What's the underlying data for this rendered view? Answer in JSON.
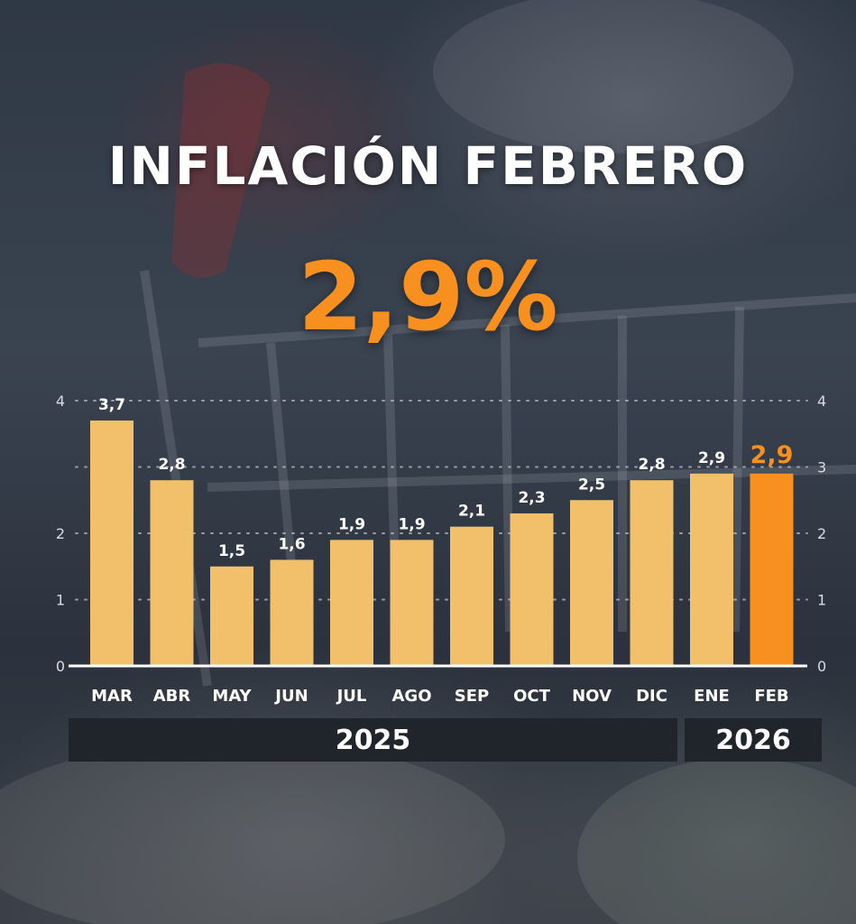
{
  "headline": "INFLACIÓN FEBRERO",
  "big_value": "2,9%",
  "colors": {
    "bar": "#f2bf6b",
    "highlight": "#f7901e",
    "axis": "#ffffff",
    "grid": "#b9bec6",
    "year_band": "#20242b"
  },
  "chart_data": {
    "type": "bar",
    "categories": [
      "MAR",
      "ABR",
      "MAY",
      "JUN",
      "JUL",
      "AGO",
      "SEP",
      "OCT",
      "NOV",
      "DIC",
      "ENE",
      "FEB"
    ],
    "values": [
      3.7,
      2.8,
      1.5,
      1.6,
      1.9,
      1.9,
      2.1,
      2.3,
      2.5,
      2.8,
      2.9,
      2.9
    ],
    "value_labels": [
      "3,7",
      "2,8",
      "1,5",
      "1,6",
      "1,9",
      "1,9",
      "2,1",
      "2,3",
      "2,5",
      "2,8",
      "2,9",
      "2,9"
    ],
    "highlight_index": 11,
    "ylim": [
      0,
      4
    ],
    "left_ticks": [
      "0",
      "1",
      "2",
      "4"
    ],
    "right_ticks": [
      "0",
      "1",
      "2",
      "3",
      "4"
    ],
    "grid": true,
    "year_groups": [
      {
        "label": "2025",
        "months": 10
      },
      {
        "label": "2026",
        "months": 2
      }
    ]
  }
}
